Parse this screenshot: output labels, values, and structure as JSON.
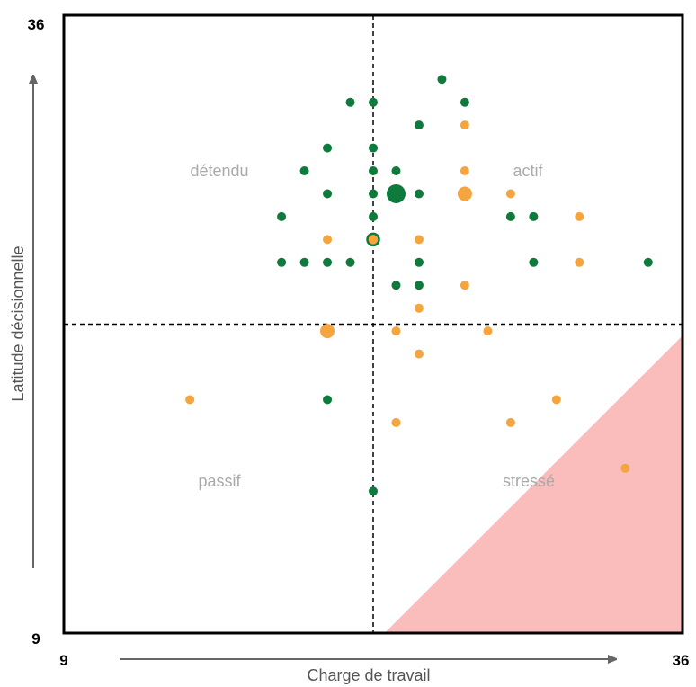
{
  "chart_data": {
    "type": "scatter",
    "xlabel": "Charge de travail",
    "ylabel": "Latitude décisionnelle",
    "xlim": [
      9,
      36
    ],
    "ylim": [
      9,
      36
    ],
    "x_ticks": [
      "9",
      "36"
    ],
    "y_ticks": [
      "9",
      "36"
    ],
    "divider_x": 22.5,
    "divider_y": 22.5,
    "grid": false,
    "quadrant_labels": {
      "top_left": "détendu",
      "top_right": "actif",
      "bottom_left": "passif",
      "bottom_right": "stressé"
    },
    "stress_zone": {
      "from": [
        23,
        9
      ],
      "to": [
        36,
        22
      ],
      "corner": [
        36,
        9
      ]
    },
    "colors": {
      "green": "#0e7a3c",
      "orange": "#f5a540",
      "stress_zone": "#fbbcbc",
      "axis_arrow": "#666666"
    },
    "series": [
      {
        "color": "green",
        "points": [
          {
            "x": 25.5,
            "y": 33.2
          },
          {
            "x": 21.5,
            "y": 32.2
          },
          {
            "x": 22.5,
            "y": 32.2
          },
          {
            "x": 26.5,
            "y": 32.2
          },
          {
            "x": 24.5,
            "y": 31.2
          },
          {
            "x": 20.5,
            "y": 30.2
          },
          {
            "x": 22.5,
            "y": 30.2
          },
          {
            "x": 19.5,
            "y": 29.2
          },
          {
            "x": 22.5,
            "y": 29.2
          },
          {
            "x": 23.5,
            "y": 29.2
          },
          {
            "x": 20.5,
            "y": 28.2
          },
          {
            "x": 22.5,
            "y": 28.2
          },
          {
            "x": 23.5,
            "y": 28.2,
            "size": "large"
          },
          {
            "x": 24.5,
            "y": 28.2
          },
          {
            "x": 18.5,
            "y": 27.2
          },
          {
            "x": 22.5,
            "y": 27.2
          },
          {
            "x": 28.5,
            "y": 27.2
          },
          {
            "x": 29.5,
            "y": 27.2
          },
          {
            "x": 18.5,
            "y": 25.2
          },
          {
            "x": 19.5,
            "y": 25.2
          },
          {
            "x": 20.5,
            "y": 25.2
          },
          {
            "x": 21.5,
            "y": 25.2
          },
          {
            "x": 24.5,
            "y": 25.2
          },
          {
            "x": 29.5,
            "y": 25.2
          },
          {
            "x": 34.5,
            "y": 25.2
          },
          {
            "x": 23.5,
            "y": 24.2
          },
          {
            "x": 24.5,
            "y": 24.2
          },
          {
            "x": 20.5,
            "y": 19.2
          },
          {
            "x": 22.5,
            "y": 15.2
          }
        ]
      },
      {
        "color": "orange",
        "points": [
          {
            "x": 26.5,
            "y": 31.2
          },
          {
            "x": 26.5,
            "y": 29.2
          },
          {
            "x": 26.5,
            "y": 28.2,
            "size": "medium"
          },
          {
            "x": 28.5,
            "y": 28.2
          },
          {
            "x": 31.5,
            "y": 27.2
          },
          {
            "x": 20.5,
            "y": 26.2
          },
          {
            "x": 22.5,
            "y": 26.2,
            "ring": true
          },
          {
            "x": 24.5,
            "y": 26.2
          },
          {
            "x": 31.5,
            "y": 25.2
          },
          {
            "x": 26.5,
            "y": 24.2
          },
          {
            "x": 24.5,
            "y": 23.2
          },
          {
            "x": 20.5,
            "y": 22.2,
            "size": "medium"
          },
          {
            "x": 23.5,
            "y": 22.2
          },
          {
            "x": 27.5,
            "y": 22.2
          },
          {
            "x": 24.5,
            "y": 21.2
          },
          {
            "x": 14.5,
            "y": 19.2
          },
          {
            "x": 30.5,
            "y": 19.2
          },
          {
            "x": 23.5,
            "y": 18.2
          },
          {
            "x": 28.5,
            "y": 18.2
          },
          {
            "x": 33.5,
            "y": 16.2
          }
        ]
      }
    ]
  }
}
